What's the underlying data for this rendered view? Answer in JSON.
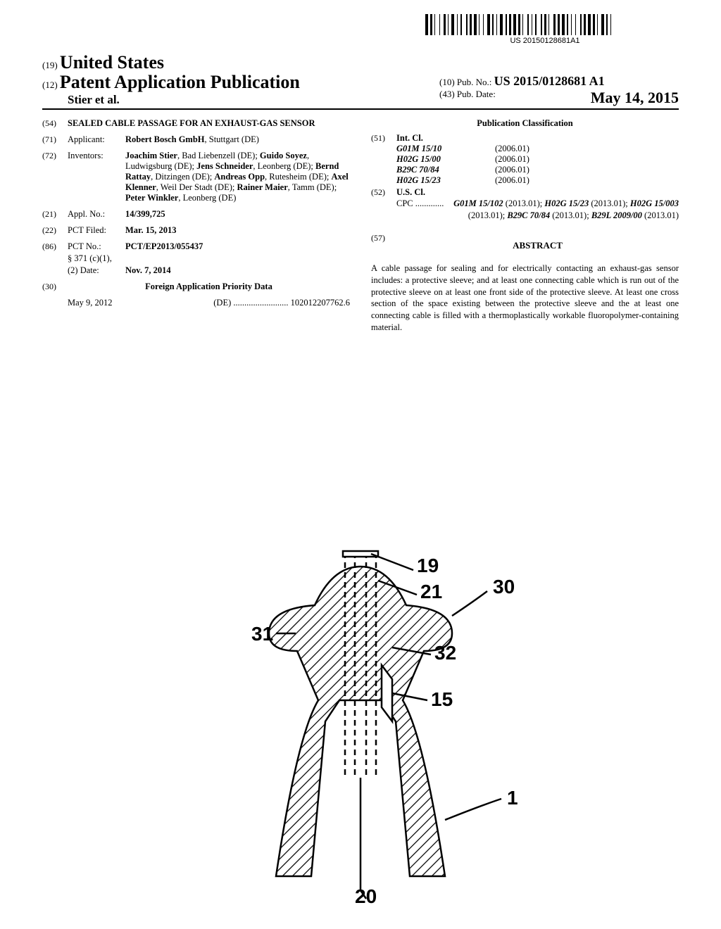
{
  "barcode_text": "US 20150128681A1",
  "country_num": "(19)",
  "country": "United States",
  "pub_type_num": "(12)",
  "pub_type": "Patent Application Publication",
  "authors": "Stier et al.",
  "pubno_num": "(10)",
  "pubno_label": "Pub. No.:",
  "pubno": "US 2015/0128681 A1",
  "pubdate_num": "(43)",
  "pubdate_label": "Pub. Date:",
  "pubdate": "May 14, 2015",
  "title_num": "(54)",
  "title": "SEALED CABLE PASSAGE FOR AN EXHAUST-GAS SENSOR",
  "applicant_num": "(71)",
  "applicant_label": "Applicant:",
  "applicant": "Robert Bosch GmbH",
  "applicant_loc": ", Stuttgart (DE)",
  "inventors_num": "(72)",
  "inventors_label": "Inventors:",
  "inventors_html": "Joachim Stier|, Bad Liebenzell (DE); |Guido Soyez|, Ludwigsburg (DE); |Jens Schneider|, Leonberg (DE); |Bernd Rattay|, Ditzingen (DE); |Andreas Opp|, Rutesheim (DE); |Axel Klenner|, Weil Der Stadt (DE); |Rainer Maier|, Tamm (DE); |Peter Winkler|, Leonberg (DE)",
  "applno_num": "(21)",
  "applno_label": "Appl. No.:",
  "applno": "14/399,725",
  "pct_filed_num": "(22)",
  "pct_filed_label": "PCT Filed:",
  "pct_filed": "Mar. 15, 2013",
  "pct_no_num": "(86)",
  "pct_no_label": "PCT No.:",
  "pct_no": "PCT/EP2013/055437",
  "s371_label": "§ 371 (c)(1),",
  "s371_date_label": "(2) Date:",
  "s371_date": "Nov. 7, 2014",
  "fpd_num": "(30)",
  "fpd_label": "Foreign Application Priority Data",
  "fpd_date": "May 9, 2012",
  "fpd_country": "(DE)",
  "fpd_dots": ".........................",
  "fpd_no": "102012207762.6",
  "classification_label": "Publication Classification",
  "intcl_num": "(51)",
  "intcl_label": "Int. Cl.",
  "intcl": [
    {
      "code": "G01M 15/10",
      "year": "(2006.01)"
    },
    {
      "code": "H02G 15/00",
      "year": "(2006.01)"
    },
    {
      "code": "B29C 70/84",
      "year": "(2006.01)"
    },
    {
      "code": "H02G 15/23",
      "year": "(2006.01)"
    }
  ],
  "uscl_num": "(52)",
  "uscl_label": "U.S. Cl.",
  "cpc_lead": "CPC .............",
  "cpc_text": "G01M 15/102| (2013.01); |H02G 15/23| (2013.01); |H02G 15/003| (2013.01); |B29C 70/84| (2013.01); |B29L 2009/00| (2013.01)",
  "abstract_num": "(57)",
  "abstract_label": "ABSTRACT",
  "abstract_text": "A cable passage for sealing and for electrically contacting an exhaust-gas sensor includes: a protective sleeve; and at least one connecting cable which is run out of the protective sleeve on at least one front side of the protective sleeve. At least one cross section of the space existing between the protective sleeve and the at least one connecting cable is filled with a thermoplastically workable fluoropolymer-containing material.",
  "figure": {
    "labels": [
      "19",
      "21",
      "30",
      "31",
      "32",
      "15",
      "1",
      "20"
    ],
    "stroke": "#000",
    "stroke_width": 2.5,
    "font_size": 28,
    "font_weight": "bold"
  }
}
